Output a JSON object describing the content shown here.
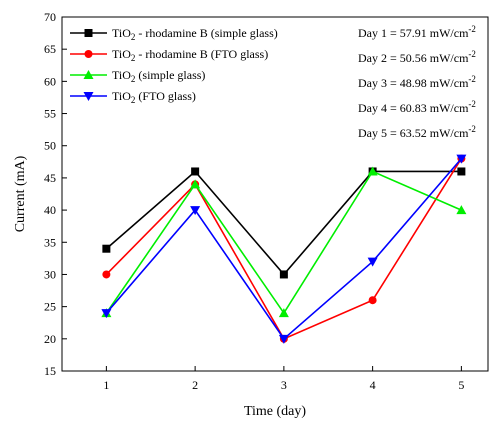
{
  "chart_data": {
    "type": "line",
    "xlabel": "Time (day)",
    "ylabel": "Current (mA)",
    "x": [
      1,
      2,
      3,
      4,
      5
    ],
    "xlim": [
      0.5,
      5.3
    ],
    "ylim": [
      15,
      70
    ],
    "xticks": [
      1,
      2,
      3,
      4,
      5
    ],
    "yticks": [
      15,
      20,
      25,
      30,
      35,
      40,
      45,
      50,
      55,
      60,
      65,
      70
    ],
    "grid": false,
    "legend_position": "top-left",
    "series": [
      {
        "name": "TiO2 - rhodamine B (simple glass)",
        "name_main": "TiO",
        "name_sub": "2",
        "name_rest": " - rhodamine B (simple glass)",
        "color": "#000000",
        "marker": "square",
        "values": [
          34,
          46,
          30,
          46,
          46
        ]
      },
      {
        "name": "TiO2 - rhodamine B (FTO glass)",
        "name_main": "TiO",
        "name_sub": "2",
        "name_rest": " - rhodamine B (FTO glass)",
        "color": "#ff0000",
        "marker": "circle",
        "values": [
          30,
          44,
          20,
          26,
          48
        ]
      },
      {
        "name": "TiO2 (simple glass)",
        "name_main": "TiO",
        "name_sub": "2",
        "name_rest": " (simple glass)",
        "color": "#00ee00",
        "marker": "triangle-up",
        "values": [
          24,
          44,
          24,
          46,
          40
        ]
      },
      {
        "name": "TiO2 (FTO glass)",
        "name_main": "TiO",
        "name_sub": "2",
        "name_rest": " (FTO glass)",
        "color": "#0000ff",
        "marker": "triangle-down",
        "values": [
          24,
          40,
          20,
          32,
          48
        ]
      }
    ],
    "annotations": [
      {
        "main": "Day 1 = 57.91 mW/cm",
        "sup": "-2"
      },
      {
        "main": "Day 2 = 50.56 mW/cm",
        "sup": "-2"
      },
      {
        "main": "Day 3 = 48.98 mW/cm",
        "sup": "-2"
      },
      {
        "main": "Day 4 = 60.83 mW/cm",
        "sup": "-2"
      },
      {
        "main": "Day 5 = 63.52 mW/cm",
        "sup": "-2"
      }
    ]
  }
}
